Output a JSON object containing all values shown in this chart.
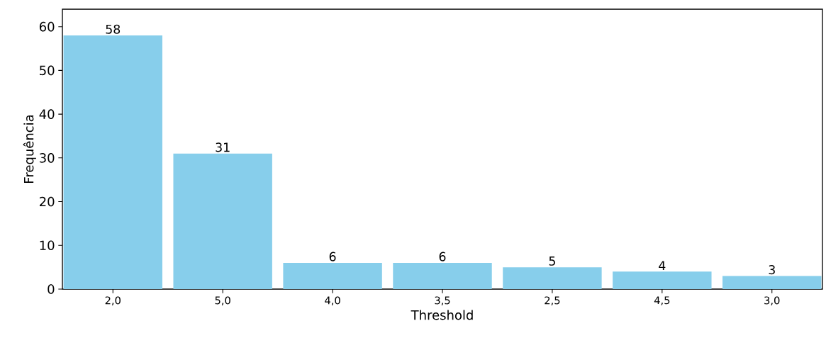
{
  "chart_data": {
    "type": "bar",
    "xlabel": "Threshold",
    "ylabel": "Frequência",
    "categories": [
      "2,0",
      "5,0",
      "4,0",
      "3,5",
      "2,5",
      "4,5",
      "3,0"
    ],
    "values": [
      58,
      31,
      6,
      6,
      5,
      4,
      3
    ],
    "color": "#87ceeb",
    "ylim": [
      0,
      64
    ],
    "yticks": [
      0,
      10,
      20,
      30,
      40,
      50,
      60
    ],
    "data_labels": true,
    "grid": false
  }
}
